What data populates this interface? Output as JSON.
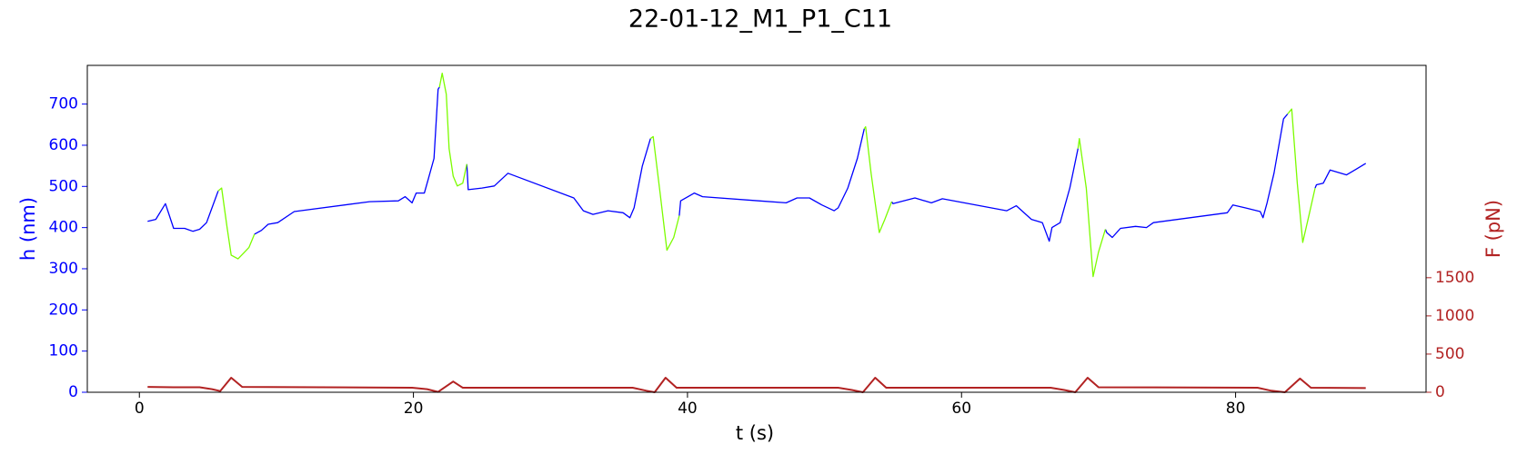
{
  "chart_data": {
    "type": "line",
    "title": "22-01-12_M1_P1_C11",
    "x_label": "t (s)",
    "y_label": "h (nm)",
    "y2_label": "F (pN)",
    "xlim": [
      -3.8,
      93.9
    ],
    "xticks": [
      0,
      20,
      40,
      60,
      80
    ],
    "ylim": [
      0,
      794
    ],
    "yticks": [
      0,
      100,
      200,
      300,
      400,
      500,
      600,
      700
    ],
    "y2lim": [
      0,
      4280
    ],
    "y2ticks": [
      0,
      500,
      1000,
      1500
    ],
    "y_color": "#0000ff",
    "y2_color": "#b22222",
    "series": [
      {
        "color": "#0000ff",
        "axis": "y",
        "x": [
          0.6,
          1.2,
          1.9,
          2.5,
          3.3,
          3.9,
          4.4,
          4.9,
          5.3,
          5.75,
          null,
          8.4,
          8.9,
          9.4,
          10.1,
          11.3,
          16.8,
          18.9,
          19.4,
          19.9,
          20.2,
          20.8,
          21.1,
          21.5,
          21.8,
          21.9,
          null,
          23.9,
          24.0,
          25.0,
          25.9,
          26.9,
          31.7,
          32.4,
          33.1,
          34.2,
          35.3,
          35.8,
          36.1,
          36.7,
          37.3,
          null,
          39.4,
          39.5,
          40.5,
          41.1,
          45.2,
          47.2,
          48.0,
          48.9,
          49.8,
          50.7,
          51.0,
          51.7,
          52.4,
          52.9,
          null,
          54.9,
          55.0,
          56.6,
          57.8,
          58.6,
          63.3,
          64.0,
          65.1,
          65.9,
          66.4,
          66.6,
          67.2,
          67.9,
          68.5,
          null,
          70.5,
          70.6,
          71.0,
          71.6,
          72.7,
          73.5,
          74.0,
          79.4,
          79.8,
          80.7,
          81.8,
          82.0,
          82.3,
          82.8,
          83.5,
          83.8,
          null,
          85.8,
          85.9,
          86.4,
          86.9,
          88.1,
          88.8,
          89.5
        ],
        "values": [
          415,
          420,
          458,
          398,
          398,
          391,
          396,
          412,
          448,
          489,
          null,
          384,
          393,
          408,
          412,
          439,
          463,
          465,
          475,
          460,
          484,
          484,
          520,
          568,
          736,
          741,
          null,
          554,
          492,
          496,
          501,
          532,
          472,
          441,
          432,
          441,
          436,
          424,
          448,
          549,
          616,
          null,
          429,
          465,
          484,
          475,
          465,
          460,
          472,
          472,
          455,
          441,
          448,
          496,
          568,
          640,
          null,
          463,
          458,
          472,
          460,
          470,
          441,
          453,
          420,
          412,
          367,
          400,
          412,
          496,
          592,
          null,
          396,
          388,
          376,
          398,
          403,
          400,
          412,
          436,
          455,
          448,
          439,
          424,
          460,
          532,
          664,
          676,
          null,
          496,
          504,
          508,
          540,
          528,
          542,
          556
        ]
      },
      {
        "color": "#7cfc00",
        "axis": "y",
        "x": [
          5.75,
          6.0,
          6.4,
          6.7,
          7.2,
          7.6,
          8.0,
          8.4,
          null,
          21.9,
          22.1,
          22.4,
          22.6,
          22.9,
          23.2,
          23.6,
          23.9,
          null,
          37.3,
          37.5,
          38.0,
          38.5,
          39.0,
          39.4,
          null,
          52.9,
          53.0,
          53.4,
          54.0,
          54.4,
          54.9,
          null,
          68.5,
          68.6,
          69.1,
          69.6,
          70.0,
          70.5,
          null,
          83.8,
          84.1,
          84.5,
          84.9,
          85.4,
          85.8
        ],
        "values": [
          489,
          496,
          400,
          333,
          324,
          338,
          352,
          384,
          null,
          741,
          775,
          724,
          592,
          525,
          501,
          508,
          554,
          null,
          616,
          621,
          484,
          345,
          376,
          429,
          null,
          640,
          645,
          532,
          388,
          420,
          463,
          null,
          592,
          616,
          496,
          281,
          341,
          396,
          null,
          676,
          688,
          508,
          364,
          436,
          496
        ]
      },
      {
        "color": "#b22222",
        "axis": "y2",
        "x": [
          0.6,
          2.5,
          4.4,
          5.3,
          5.9,
          6.7,
          7.5,
          19.9,
          21.0,
          21.8,
          22.9,
          23.6,
          36.0,
          37.0,
          37.6,
          38.4,
          39.2,
          51.0,
          52.0,
          52.8,
          53.7,
          54.5,
          66.5,
          67.5,
          68.3,
          69.2,
          70.0,
          81.6,
          82.6,
          83.6,
          84.7,
          85.5,
          89.5
        ],
        "values": [
          70,
          65,
          65,
          40,
          15,
          190,
          70,
          60,
          40,
          5,
          140,
          60,
          60,
          20,
          0,
          190,
          60,
          60,
          30,
          0,
          190,
          60,
          60,
          30,
          0,
          190,
          65,
          60,
          20,
          0,
          180,
          60,
          55
        ]
      }
    ]
  }
}
